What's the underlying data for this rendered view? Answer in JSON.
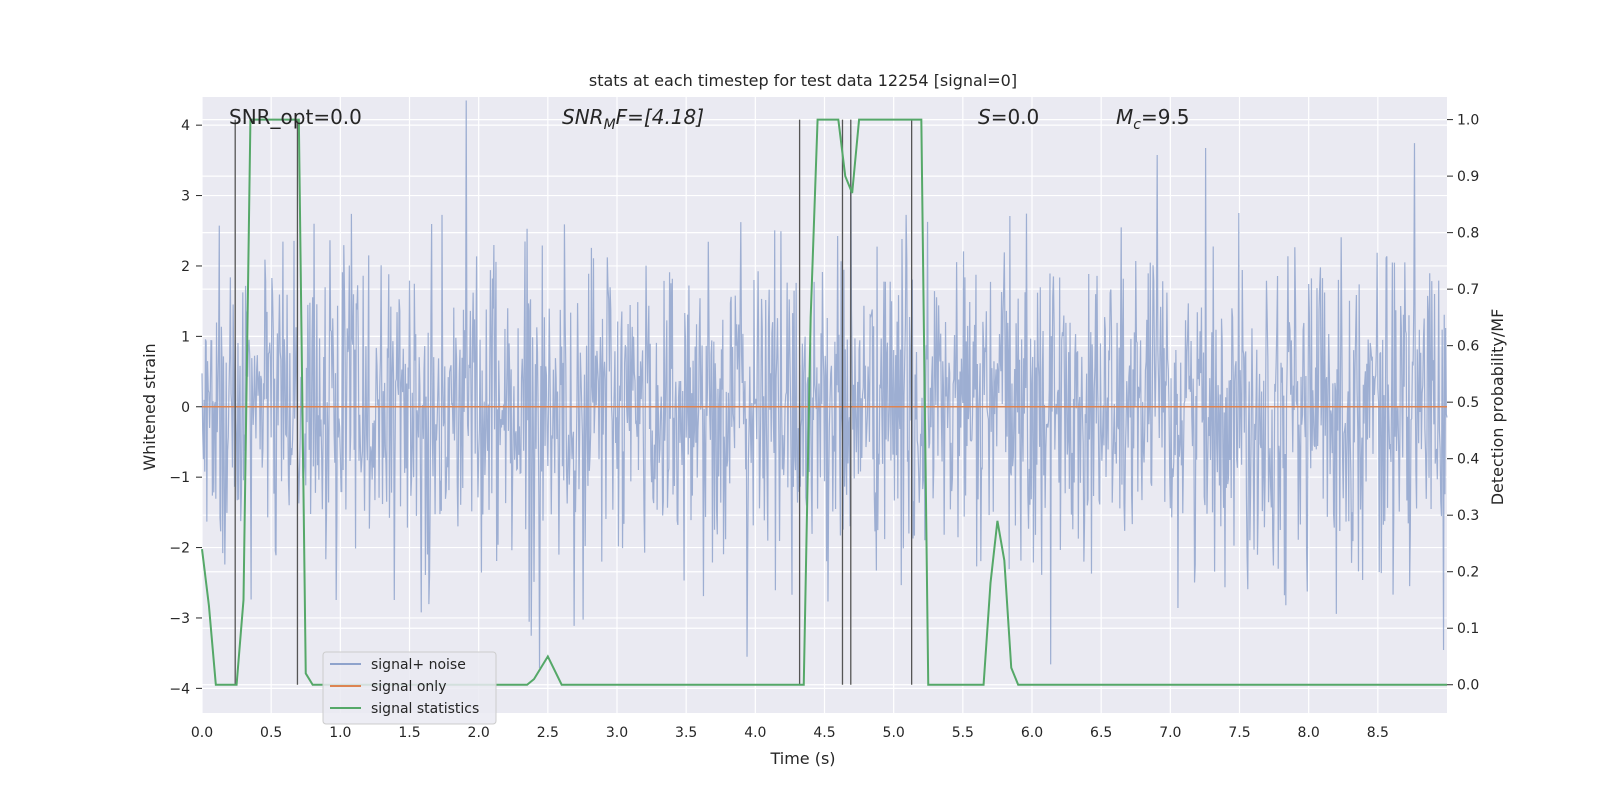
{
  "chart_data": {
    "type": "line",
    "title": "stats at each timestep for test data 12254 [signal=0]",
    "xlabel": "Time (s)",
    "ylabel": "Whitened strain",
    "ylabel_right": "Detection probability/MF",
    "xlim": [
      0,
      9.0
    ],
    "ylim": [
      -4.35,
      4.4
    ],
    "ylim_right": [
      -0.05,
      1.04
    ],
    "x_ticks": [
      "0.0",
      "0.5",
      "1.0",
      "1.5",
      "2.0",
      "2.5",
      "3.0",
      "3.5",
      "4.0",
      "4.5",
      "5.0",
      "5.5",
      "6.0",
      "6.5",
      "7.0",
      "7.5",
      "8.0",
      "8.5"
    ],
    "y_ticks": [
      "−4",
      "−3",
      "−2",
      "−1",
      "0",
      "1",
      "2",
      "3",
      "4"
    ],
    "y_ticks_right": [
      "0.0",
      "0.1",
      "0.2",
      "0.3",
      "0.4",
      "0.5",
      "0.6",
      "0.7",
      "0.8",
      "0.9",
      "1.0"
    ],
    "grid": true,
    "legend_position": "lower-left",
    "annotations": {
      "snr_opt": "SNR_opt=0.0",
      "snr_mf_sym": "SNR",
      "snr_mf_sub": "M",
      "snr_mf_tail": "F=[4.18]",
      "s_sym": "S",
      "s_tail": "=0.0",
      "mc_sym": "M",
      "mc_sub": "c",
      "mc_tail": "=9.5"
    },
    "series": [
      {
        "name": "signal+ noise",
        "color": "#8fa3cc",
        "axis": "left",
        "kind": "noise",
        "sample_rate_hz": 200,
        "envelope_sigma": 1.1
      },
      {
        "name": "signal only",
        "color": "#dd8452",
        "axis": "left",
        "values_constant": 0.0
      },
      {
        "name": "signal statistics",
        "color": "#55a868",
        "axis": "right",
        "x": [
          0.0,
          0.05,
          0.1,
          0.15,
          0.2,
          0.25,
          0.3,
          0.35,
          0.4,
          0.45,
          0.5,
          0.55,
          0.6,
          0.65,
          0.7,
          0.75,
          0.8,
          0.85,
          0.9,
          0.95,
          1.0,
          1.1,
          1.2,
          1.3,
          1.4,
          1.5,
          1.6,
          1.7,
          1.8,
          1.9,
          2.0,
          2.1,
          2.2,
          2.3,
          2.35,
          2.4,
          2.45,
          2.5,
          2.6,
          2.7,
          2.8,
          2.9,
          3.0,
          3.2,
          3.4,
          3.6,
          3.8,
          4.0,
          4.1,
          4.2,
          4.3,
          4.35,
          4.4,
          4.45,
          4.5,
          4.55,
          4.6,
          4.65,
          4.7,
          4.75,
          4.8,
          4.85,
          4.9,
          4.95,
          5.0,
          5.05,
          5.1,
          5.15,
          5.2,
          5.25,
          5.3,
          5.35,
          5.4,
          5.45,
          5.5,
          5.55,
          5.6,
          5.65,
          5.7,
          5.75,
          5.8,
          5.85,
          5.9,
          6.0,
          6.2,
          6.4,
          6.6,
          6.8,
          6.9,
          6.95,
          7.0,
          7.05,
          7.1,
          7.2,
          7.4,
          7.6,
          7.8,
          8.0,
          8.2,
          8.4,
          8.6,
          8.8,
          9.0
        ],
        "values": [
          0.24,
          0.14,
          0.0,
          0.0,
          0.0,
          0.0,
          0.15,
          1.0,
          1.0,
          1.0,
          1.0,
          1.0,
          1.0,
          1.0,
          1.0,
          0.02,
          0.0,
          0.0,
          0.0,
          0.0,
          0.0,
          0.0,
          0.0,
          0.0,
          0.0,
          0.0,
          0.0,
          0.0,
          0.0,
          0.0,
          0.0,
          0.0,
          0.0,
          0.0,
          0.0,
          0.01,
          0.03,
          0.05,
          0.0,
          0.0,
          0.0,
          0.0,
          0.0,
          0.0,
          0.0,
          0.0,
          0.0,
          0.0,
          0.0,
          0.0,
          0.0,
          0.0,
          0.65,
          1.0,
          1.0,
          1.0,
          1.0,
          0.9,
          0.87,
          1.0,
          1.0,
          1.0,
          1.0,
          1.0,
          1.0,
          1.0,
          1.0,
          1.0,
          1.0,
          0.0,
          0.0,
          0.0,
          0.0,
          0.0,
          0.0,
          0.0,
          0.0,
          0.0,
          0.18,
          0.29,
          0.22,
          0.03,
          0.0,
          0.0,
          0.0,
          0.0,
          0.0,
          0.0,
          0.0,
          0.0,
          0.0,
          0.0,
          0.0,
          0.0,
          0.0,
          0.0,
          0.0,
          0.0,
          0.0,
          0.0,
          0.0,
          0.0,
          0.0
        ]
      }
    ],
    "vertical_markers_x": [
      0.24,
      0.69,
      4.32,
      4.63,
      4.69,
      5.13
    ]
  }
}
